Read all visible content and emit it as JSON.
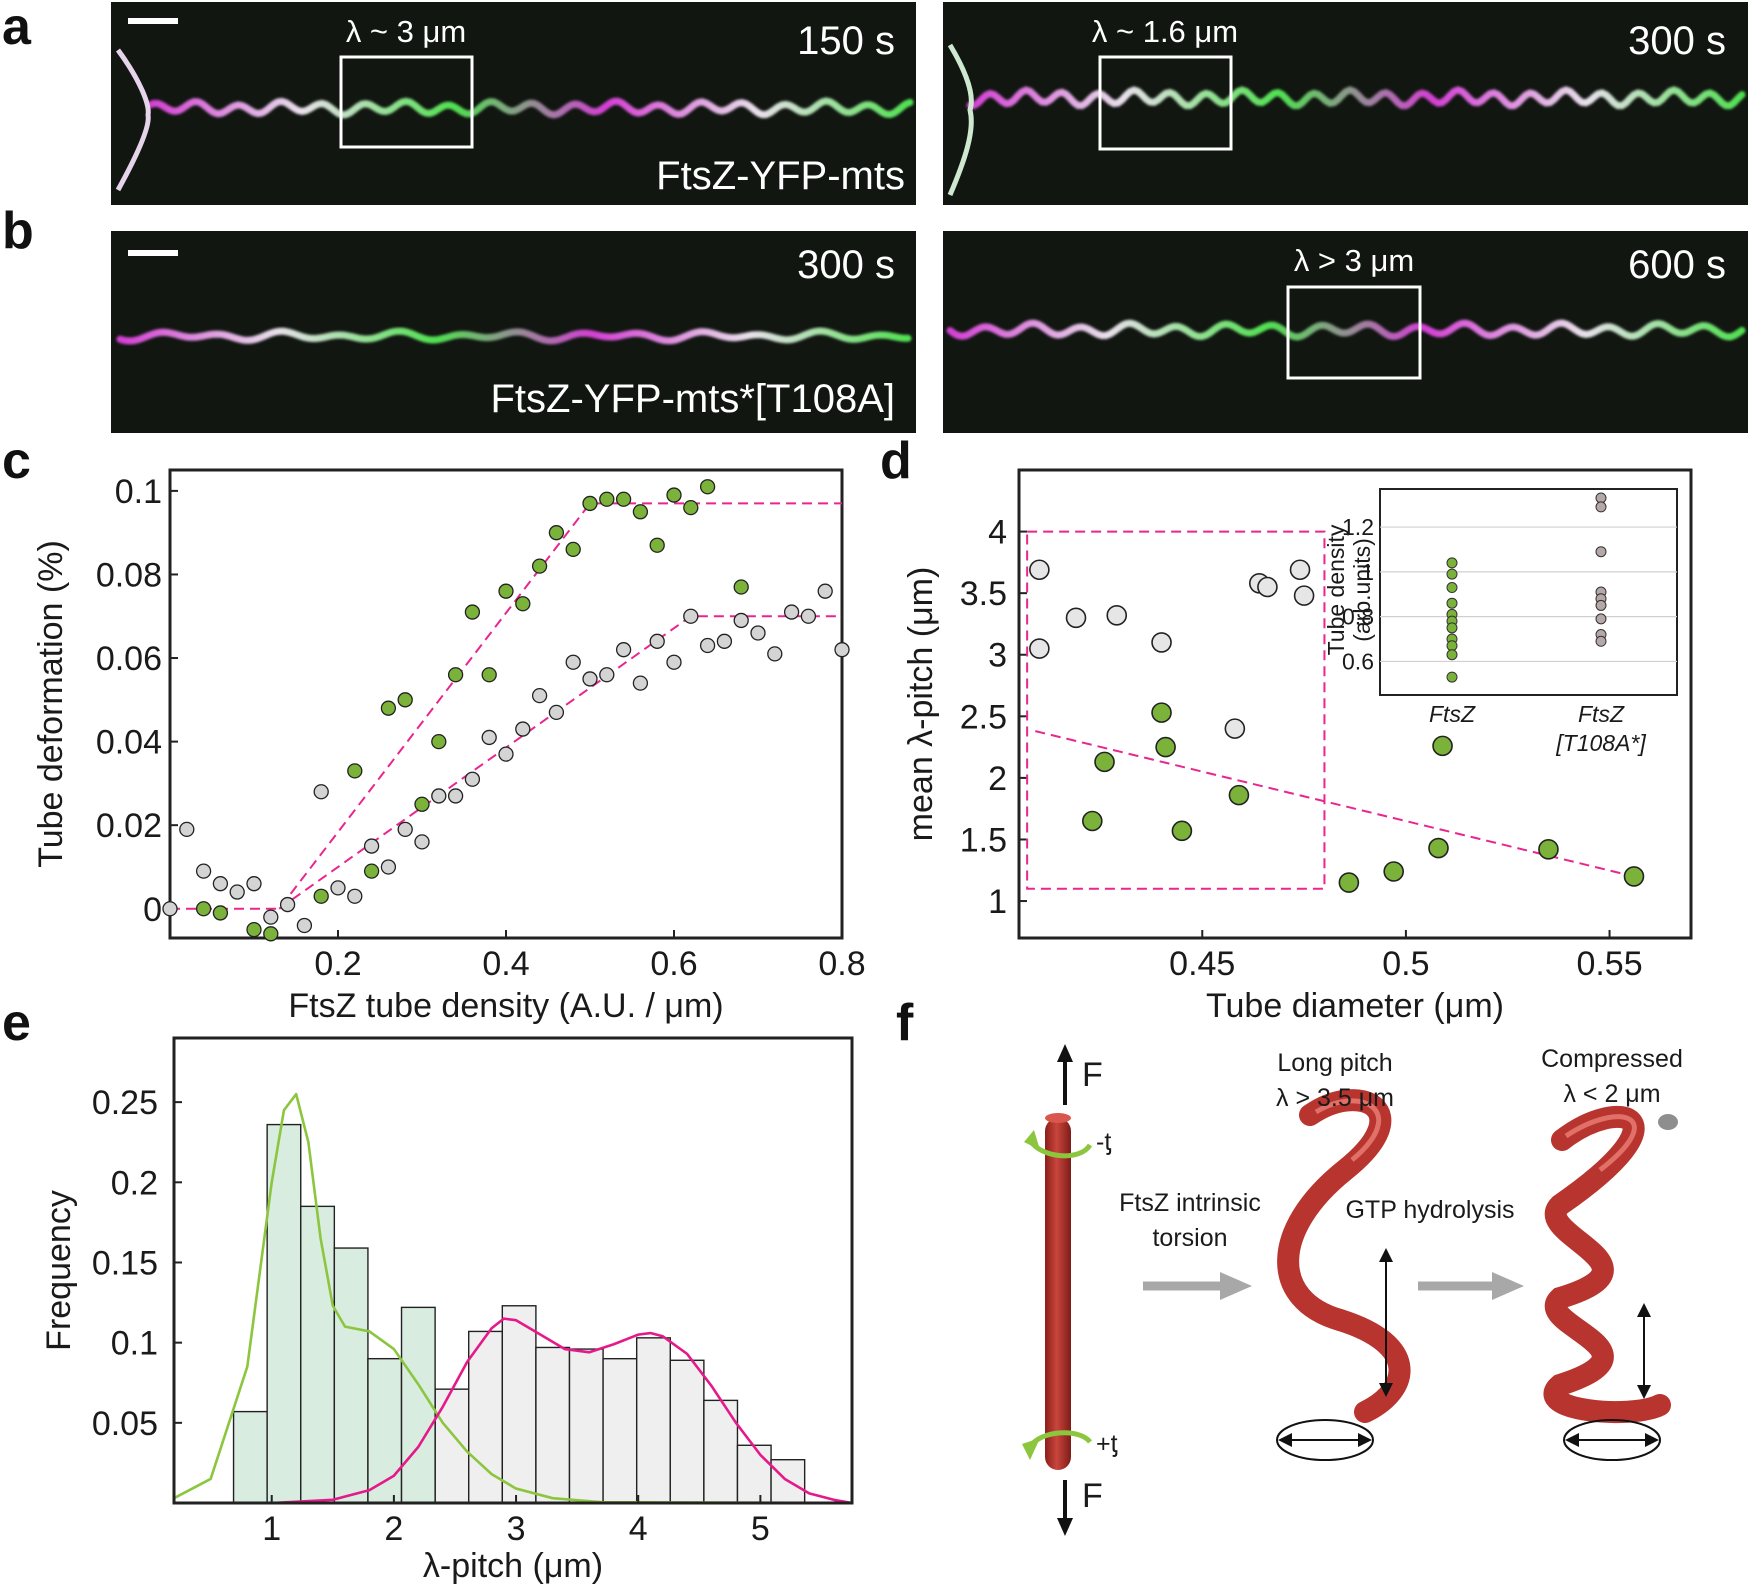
{
  "panel_labels": {
    "a": "a",
    "b": "b",
    "c": "c",
    "d": "d",
    "e": "e",
    "f": "f"
  },
  "micrographs": {
    "a_left": {
      "time": "150 s",
      "box_label": "λ ~ 3 μm",
      "caption": "FtsZ-YFP-mts"
    },
    "a_right": {
      "time": "300 s",
      "box_label": "λ ~ 1.6 μm"
    },
    "b_left": {
      "time": "300 s",
      "caption": "FtsZ-YFP-mts*[T108A]"
    },
    "b_right": {
      "time": "600 s",
      "box_label": "λ > 3 μm"
    },
    "colors": {
      "membrane": "#d43fd4",
      "ftsz": "#50e050",
      "background": "#101410"
    }
  },
  "chart_data": [
    {
      "panel": "c",
      "type": "scatter",
      "xlabel": "FtsZ tube density (A.U. / μm)",
      "ylabel": "Tube deformation (%)",
      "xlim": [
        0,
        0.8
      ],
      "ylim": [
        -0.007,
        0.105
      ],
      "xticks": [
        "0.2",
        "0.4",
        "0.6",
        "0.8"
      ],
      "yticks": [
        "0",
        "0.02",
        "0.04",
        "0.06",
        "0.08",
        "0.1"
      ],
      "series": [
        {
          "color": "#7bb33a",
          "points": [
            [
              0.04,
              0.0
            ],
            [
              0.06,
              -0.001
            ],
            [
              0.1,
              -0.005
            ],
            [
              0.12,
              -0.006
            ],
            [
              0.18,
              0.003
            ],
            [
              0.22,
              0.033
            ],
            [
              0.24,
              0.009
            ],
            [
              0.26,
              0.048
            ],
            [
              0.28,
              0.05
            ],
            [
              0.3,
              0.025
            ],
            [
              0.32,
              0.04
            ],
            [
              0.34,
              0.056
            ],
            [
              0.36,
              0.071
            ],
            [
              0.38,
              0.056
            ],
            [
              0.4,
              0.076
            ],
            [
              0.42,
              0.073
            ],
            [
              0.44,
              0.082
            ],
            [
              0.46,
              0.09
            ],
            [
              0.48,
              0.086
            ],
            [
              0.5,
              0.097
            ],
            [
              0.52,
              0.098
            ],
            [
              0.54,
              0.098
            ],
            [
              0.56,
              0.095
            ],
            [
              0.58,
              0.087
            ],
            [
              0.6,
              0.099
            ],
            [
              0.62,
              0.096
            ],
            [
              0.64,
              0.101
            ],
            [
              0.68,
              0.077
            ]
          ]
        },
        {
          "color": "#d4d4d4",
          "points": [
            [
              0.0,
              0.0
            ],
            [
              0.02,
              0.019
            ],
            [
              0.04,
              0.009
            ],
            [
              0.06,
              0.006
            ],
            [
              0.08,
              0.004
            ],
            [
              0.1,
              0.006
            ],
            [
              0.12,
              -0.002
            ],
            [
              0.14,
              0.001
            ],
            [
              0.16,
              -0.004
            ],
            [
              0.18,
              0.028
            ],
            [
              0.2,
              0.005
            ],
            [
              0.22,
              0.003
            ],
            [
              0.24,
              0.015
            ],
            [
              0.26,
              0.01
            ],
            [
              0.28,
              0.019
            ],
            [
              0.3,
              0.016
            ],
            [
              0.32,
              0.027
            ],
            [
              0.34,
              0.027
            ],
            [
              0.36,
              0.031
            ],
            [
              0.38,
              0.041
            ],
            [
              0.4,
              0.037
            ],
            [
              0.42,
              0.043
            ],
            [
              0.44,
              0.051
            ],
            [
              0.46,
              0.047
            ],
            [
              0.48,
              0.059
            ],
            [
              0.5,
              0.055
            ],
            [
              0.52,
              0.056
            ],
            [
              0.54,
              0.062
            ],
            [
              0.56,
              0.054
            ],
            [
              0.58,
              0.064
            ],
            [
              0.6,
              0.059
            ],
            [
              0.62,
              0.07
            ],
            [
              0.64,
              0.063
            ],
            [
              0.66,
              0.064
            ],
            [
              0.68,
              0.069
            ],
            [
              0.7,
              0.066
            ],
            [
              0.72,
              0.061
            ],
            [
              0.74,
              0.071
            ],
            [
              0.76,
              0.07
            ],
            [
              0.78,
              0.076
            ],
            [
              0.8,
              0.062
            ]
          ]
        }
      ],
      "fit_lines": [
        {
          "color": "#e8268f",
          "points": [
            [
              0,
              0
            ],
            [
              0.13,
              0
            ],
            [
              0.5,
              0.097
            ],
            [
              0.8,
              0.097
            ]
          ]
        },
        {
          "color": "#e8268f",
          "points": [
            [
              0.13,
              0
            ],
            [
              0.62,
              0.07
            ],
            [
              0.8,
              0.07
            ]
          ]
        }
      ]
    },
    {
      "panel": "d",
      "type": "scatter",
      "xlabel": "Tube diameter (μm)",
      "ylabel": "mean λ-pitch (μm)",
      "xlim": [
        0.405,
        0.57
      ],
      "ylim": [
        0.7,
        4.5
      ],
      "xticks": [
        "0.45",
        "0.5",
        "0.55"
      ],
      "yticks": [
        "1",
        "1.5",
        "2",
        "2.5",
        "3",
        "3.5",
        "4"
      ],
      "series": [
        {
          "color": "#7bb33a",
          "points": [
            [
              0.423,
              1.65
            ],
            [
              0.426,
              2.13
            ],
            [
              0.44,
              2.53
            ],
            [
              0.441,
              2.25
            ],
            [
              0.445,
              1.57
            ],
            [
              0.459,
              1.86
            ],
            [
              0.486,
              1.15
            ],
            [
              0.497,
              1.24
            ],
            [
              0.508,
              1.43
            ],
            [
              0.509,
              2.26
            ],
            [
              0.535,
              1.42
            ],
            [
              0.556,
              1.2
            ]
          ]
        },
        {
          "color": "#e6e6e6",
          "points": [
            [
              0.41,
              3.69
            ],
            [
              0.41,
              3.05
            ],
            [
              0.419,
              3.3
            ],
            [
              0.429,
              3.32
            ],
            [
              0.44,
              3.1
            ],
            [
              0.458,
              2.4
            ],
            [
              0.464,
              3.58
            ],
            [
              0.466,
              3.55
            ],
            [
              0.474,
              3.69
            ],
            [
              0.475,
              3.48
            ]
          ]
        }
      ],
      "fit_lines": [
        {
          "color": "#e8268f",
          "points": [
            [
              0.409,
              2.38
            ],
            [
              0.556,
              1.2
            ]
          ]
        }
      ],
      "highlight_box": {
        "x": [
          0.407,
          0.48
        ],
        "y": [
          1.1,
          4.0
        ],
        "color": "#e8268f"
      },
      "inset": {
        "ylabel": "Tube density (arb.units)",
        "categories": [
          "FtsZ",
          "FtsZ [T108A*]"
        ],
        "ylim": [
          0.45,
          1.37
        ],
        "yticks": [
          "0.6",
          "0.8",
          "1",
          "1.2"
        ],
        "series": [
          {
            "category": "FtsZ",
            "color": "#7bb33a",
            "values": [
              1.04,
              0.99,
              0.93,
              0.86,
              0.81,
              0.78,
              0.75,
              0.7,
              0.67,
              0.63,
              0.53
            ]
          },
          {
            "category": "FtsZ [T108A*]",
            "color": "#b5a8a8",
            "values": [
              1.33,
              1.29,
              1.09,
              0.91,
              0.88,
              0.85,
              0.79,
              0.72,
              0.69
            ]
          }
        ]
      }
    },
    {
      "panel": "e",
      "type": "bar",
      "xlabel": "λ-pitch (μm)",
      "ylabel": "Frequency",
      "xlim": [
        0.2,
        5.75
      ],
      "ylim": [
        0,
        0.29
      ],
      "xticks": [
        "1",
        "2",
        "3",
        "4",
        "5"
      ],
      "yticks": [
        "0.05",
        "0.1",
        "0.15",
        "0.2",
        "0.25"
      ],
      "bin_width": 0.275,
      "series": [
        {
          "color": "#d8ece0",
          "bin_centers": [
            0.825,
            1.1,
            1.375,
            1.65,
            1.925,
            2.2
          ],
          "values": [
            0.057,
            0.236,
            0.185,
            0.159,
            0.09,
            0.122
          ]
        },
        {
          "color": "#efefef",
          "bin_centers": [
            1.65,
            1.925,
            2.2,
            2.475,
            2.75,
            3.025,
            3.3,
            3.575,
            3.85,
            4.125,
            4.4,
            4.675,
            4.95,
            5.225
          ],
          "values": [
            0.01,
            0.09,
            0.071,
            0.071,
            0.107,
            0.123,
            0.097,
            0.096,
            0.09,
            0.103,
            0.089,
            0.064,
            0.036,
            0.027
          ]
        }
      ],
      "curves": [
        {
          "color": "#8cc63f",
          "points": [
            [
              0.2,
              0.003
            ],
            [
              0.5,
              0.015
            ],
            [
              0.8,
              0.085
            ],
            [
              1.0,
              0.2
            ],
            [
              1.1,
              0.245
            ],
            [
              1.2,
              0.255
            ],
            [
              1.3,
              0.225
            ],
            [
              1.4,
              0.165
            ],
            [
              1.5,
              0.123
            ],
            [
              1.6,
              0.11
            ],
            [
              1.8,
              0.107
            ],
            [
              2.0,
              0.096
            ],
            [
              2.2,
              0.074
            ],
            [
              2.4,
              0.05
            ],
            [
              2.6,
              0.032
            ],
            [
              2.8,
              0.018
            ],
            [
              3.0,
              0.009
            ],
            [
              3.3,
              0.003
            ],
            [
              3.7,
              0.0005
            ],
            [
              5.75,
              0
            ]
          ]
        },
        {
          "color": "#e6198a",
          "points": [
            [
              1.0,
              0.0
            ],
            [
              1.5,
              0.002
            ],
            [
              1.8,
              0.008
            ],
            [
              2.0,
              0.017
            ],
            [
              2.2,
              0.035
            ],
            [
              2.4,
              0.06
            ],
            [
              2.6,
              0.088
            ],
            [
              2.8,
              0.109
            ],
            [
              2.9,
              0.115
            ],
            [
              3.0,
              0.114
            ],
            [
              3.2,
              0.105
            ],
            [
              3.4,
              0.096
            ],
            [
              3.6,
              0.094
            ],
            [
              3.8,
              0.099
            ],
            [
              4.0,
              0.105
            ],
            [
              4.1,
              0.106
            ],
            [
              4.2,
              0.104
            ],
            [
              4.4,
              0.093
            ],
            [
              4.6,
              0.073
            ],
            [
              4.8,
              0.05
            ],
            [
              5.0,
              0.03
            ],
            [
              5.2,
              0.015
            ],
            [
              5.4,
              0.006
            ],
            [
              5.6,
              0.002
            ],
            [
              5.75,
              0.0
            ]
          ]
        }
      ]
    }
  ],
  "diagram": {
    "force_label_top": "F",
    "force_label_bottom": "F",
    "torque_top": "-ƫ",
    "torque_bottom": "+ƫ",
    "step1": [
      "FtsZ intrinsic",
      "torsion"
    ],
    "step2": "GTP hydrolysis",
    "state1": [
      "Long pitch",
      "λ > 3.5 μm"
    ],
    "state2": [
      "Compressed",
      "λ < 2 μm"
    ],
    "colors": {
      "tube": "#b8342e",
      "arrow": "#a8a8a8",
      "torque": "#8cc63f"
    }
  }
}
